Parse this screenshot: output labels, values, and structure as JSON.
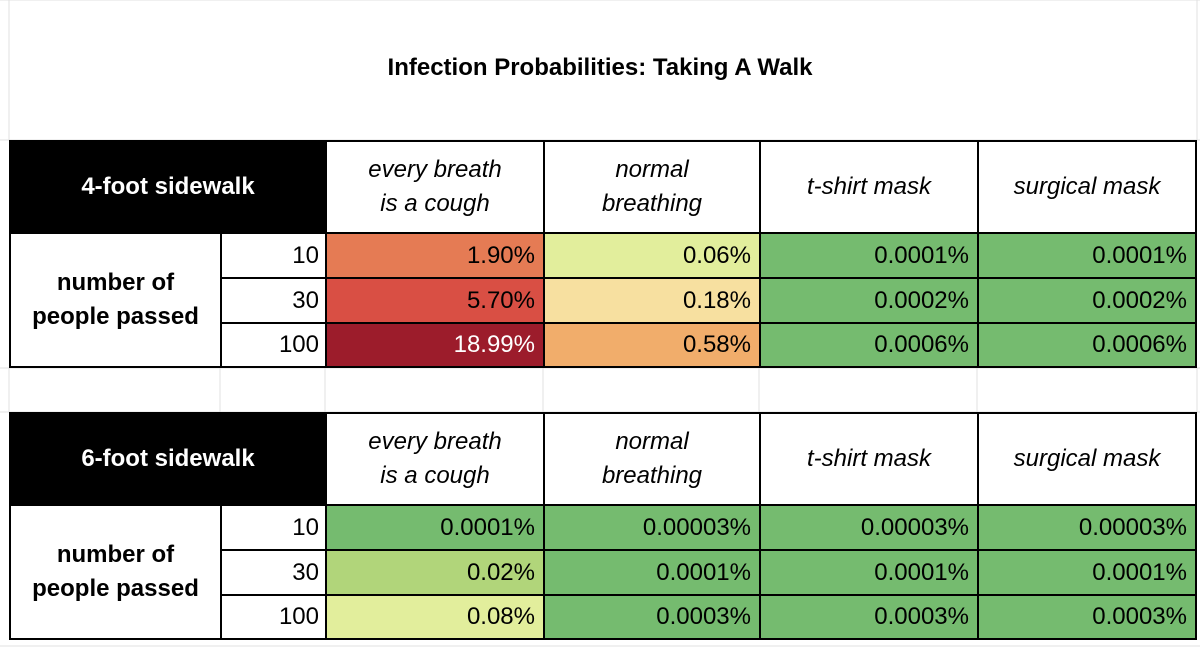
{
  "title": "Infection Probabilities: Taking A Walk",
  "column_headers": [
    "every breath\nis a cough",
    "normal\nbreathing",
    "t-shirt mask",
    "surgical mask"
  ],
  "row_group_label": "number of\npeople passed",
  "people_counts": [
    "10",
    "30",
    "100"
  ],
  "tables": [
    {
      "label": "4-foot sidewalk",
      "rows": [
        [
          "1.90%",
          "0.06%",
          "0.0001%",
          "0.0001%"
        ],
        [
          "5.70%",
          "0.18%",
          "0.0002%",
          "0.0002%"
        ],
        [
          "18.99%",
          "0.58%",
          "0.0006%",
          "0.0006%"
        ]
      ],
      "colors": [
        [
          "#e57b54",
          "#e2ee9c",
          "#75bb6f",
          "#75bb6f"
        ],
        [
          "#d94f44",
          "#f7e0a0",
          "#75bb6f",
          "#75bb6f"
        ],
        [
          "#9c1c2b",
          "#f1ad6b",
          "#75bb6f",
          "#75bb6f"
        ]
      ],
      "text_colors": [
        [
          "#000000",
          "#000000",
          "#000000",
          "#000000"
        ],
        [
          "#000000",
          "#000000",
          "#000000",
          "#000000"
        ],
        [
          "#ffffff",
          "#000000",
          "#000000",
          "#000000"
        ]
      ]
    },
    {
      "label": "6-foot sidewalk",
      "rows": [
        [
          "0.0001%",
          "0.00003%",
          "0.00003%",
          "0.00003%"
        ],
        [
          "0.02%",
          "0.0001%",
          "0.0001%",
          "0.0001%"
        ],
        [
          "0.08%",
          "0.0003%",
          "0.0003%",
          "0.0003%"
        ]
      ],
      "colors": [
        [
          "#75bb6f",
          "#75bb6f",
          "#75bb6f",
          "#75bb6f"
        ],
        [
          "#b1d57a",
          "#75bb6f",
          "#75bb6f",
          "#75bb6f"
        ],
        [
          "#e2ee9c",
          "#75bb6f",
          "#75bb6f",
          "#75bb6f"
        ]
      ],
      "text_colors": [
        [
          "#000000",
          "#000000",
          "#000000",
          "#000000"
        ],
        [
          "#000000",
          "#000000",
          "#000000",
          "#000000"
        ],
        [
          "#000000",
          "#000000",
          "#000000",
          "#000000"
        ]
      ]
    }
  ]
}
